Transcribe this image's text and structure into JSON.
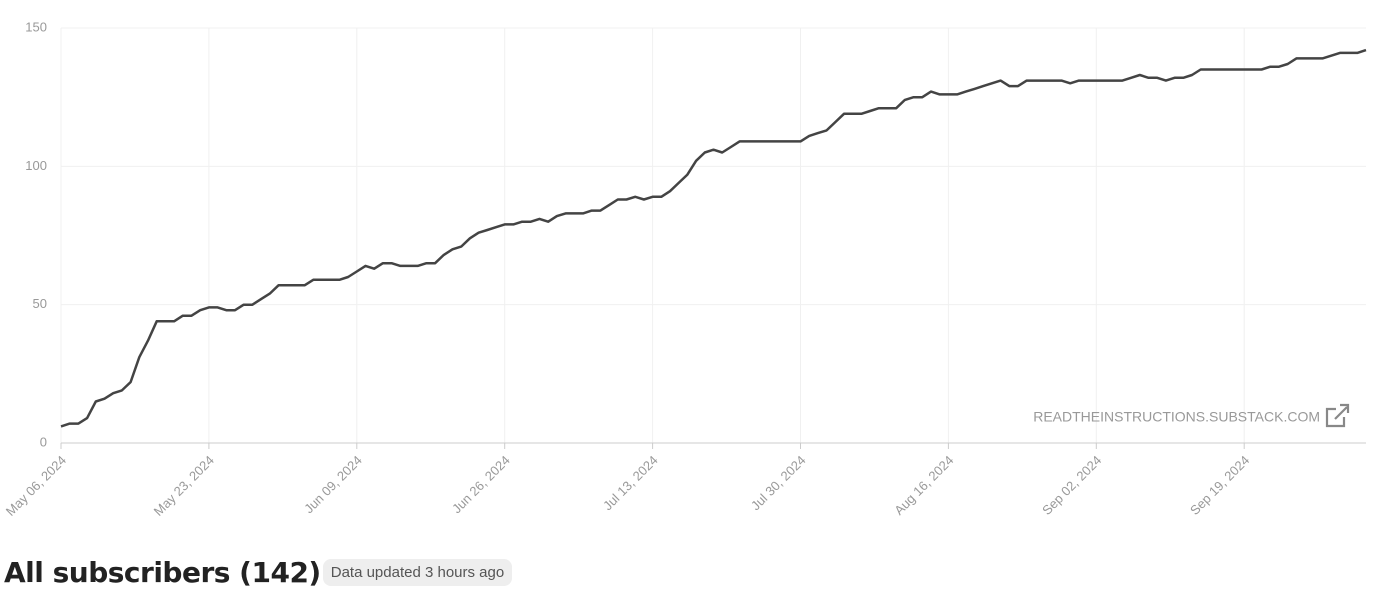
{
  "chart_data": {
    "type": "line",
    "color": "#444444",
    "grid": true,
    "x": [
      "2024-05-06",
      "2024-05-07",
      "2024-05-08",
      "2024-05-09",
      "2024-05-10",
      "2024-05-11",
      "2024-05-12",
      "2024-05-13",
      "2024-05-14",
      "2024-05-15",
      "2024-05-16",
      "2024-05-17",
      "2024-05-18",
      "2024-05-19",
      "2024-05-20",
      "2024-05-21",
      "2024-05-22",
      "2024-05-23",
      "2024-05-24",
      "2024-05-25",
      "2024-05-26",
      "2024-05-27",
      "2024-05-28",
      "2024-05-29",
      "2024-05-30",
      "2024-05-31",
      "2024-06-01",
      "2024-06-02",
      "2024-06-03",
      "2024-06-04",
      "2024-06-05",
      "2024-06-06",
      "2024-06-07",
      "2024-06-08",
      "2024-06-09",
      "2024-06-10",
      "2024-06-11",
      "2024-06-12",
      "2024-06-13",
      "2024-06-14",
      "2024-06-15",
      "2024-06-16",
      "2024-06-17",
      "2024-06-18",
      "2024-06-19",
      "2024-06-20",
      "2024-06-21",
      "2024-06-22",
      "2024-06-23",
      "2024-06-24",
      "2024-06-25",
      "2024-06-26",
      "2024-06-27",
      "2024-06-28",
      "2024-06-29",
      "2024-06-30",
      "2024-07-01",
      "2024-07-02",
      "2024-07-03",
      "2024-07-04",
      "2024-07-05",
      "2024-07-06",
      "2024-07-07",
      "2024-07-08",
      "2024-07-09",
      "2024-07-10",
      "2024-07-11",
      "2024-07-12",
      "2024-07-13",
      "2024-07-14",
      "2024-07-15",
      "2024-07-16",
      "2024-07-17",
      "2024-07-18",
      "2024-07-19",
      "2024-07-20",
      "2024-07-21",
      "2024-07-22",
      "2024-07-23",
      "2024-07-24",
      "2024-07-25",
      "2024-07-26",
      "2024-07-27",
      "2024-07-28",
      "2024-07-29",
      "2024-07-30",
      "2024-07-31",
      "2024-08-01",
      "2024-08-02",
      "2024-08-03",
      "2024-08-04",
      "2024-08-05",
      "2024-08-06",
      "2024-08-07",
      "2024-08-08",
      "2024-08-09",
      "2024-08-10",
      "2024-08-11",
      "2024-08-12",
      "2024-08-13",
      "2024-08-14",
      "2024-08-15",
      "2024-08-16",
      "2024-08-17",
      "2024-08-18",
      "2024-08-19",
      "2024-08-20",
      "2024-08-21",
      "2024-08-22",
      "2024-08-23",
      "2024-08-24",
      "2024-08-25",
      "2024-08-26",
      "2024-08-27",
      "2024-08-28",
      "2024-08-29",
      "2024-08-30",
      "2024-08-31",
      "2024-09-01",
      "2024-09-02",
      "2024-09-03",
      "2024-09-04",
      "2024-09-05",
      "2024-09-06",
      "2024-09-07",
      "2024-09-08",
      "2024-09-09",
      "2024-09-10",
      "2024-09-11",
      "2024-09-12",
      "2024-09-13",
      "2024-09-14",
      "2024-09-15",
      "2024-09-16",
      "2024-09-17",
      "2024-09-18",
      "2024-09-19",
      "2024-09-20",
      "2024-09-21",
      "2024-09-22",
      "2024-09-23",
      "2024-09-24",
      "2024-09-25",
      "2024-09-26",
      "2024-09-27",
      "2024-09-28",
      "2024-09-29",
      "2024-09-30",
      "2024-10-01",
      "2024-10-02",
      "2024-10-03"
    ],
    "values": [
      6,
      7,
      7,
      9,
      15,
      16,
      18,
      19,
      22,
      31,
      37,
      44,
      44,
      44,
      46,
      46,
      48,
      49,
      49,
      48,
      48,
      50,
      50,
      52,
      54,
      57,
      57,
      57,
      57,
      59,
      59,
      59,
      59,
      60,
      62,
      64,
      63,
      65,
      65,
      64,
      64,
      64,
      65,
      65,
      68,
      70,
      71,
      74,
      76,
      77,
      78,
      79,
      79,
      80,
      80,
      81,
      80,
      82,
      83,
      83,
      83,
      84,
      84,
      86,
      88,
      88,
      89,
      88,
      89,
      89,
      91,
      94,
      97,
      102,
      105,
      106,
      105,
      107,
      109,
      109,
      109,
      109,
      109,
      109,
      109,
      109,
      111,
      112,
      113,
      116,
      119,
      119,
      119,
      120,
      121,
      121,
      121,
      124,
      125,
      125,
      127,
      126,
      126,
      126,
      127,
      128,
      129,
      130,
      131,
      129,
      129,
      131,
      131,
      131,
      131,
      131,
      130,
      131,
      131,
      131,
      131,
      131,
      131,
      132,
      133,
      132,
      132,
      131,
      132,
      132,
      133,
      135,
      135,
      135,
      135,
      135,
      135,
      135,
      135,
      136,
      136,
      137,
      139,
      139,
      139,
      139,
      140,
      141,
      141,
      141,
      142
    ],
    "ylim": [
      0,
      150
    ],
    "yticks": [
      0,
      50,
      100,
      150
    ],
    "xticks": [
      {
        "value": "2024-05-06",
        "label": "May 06, 2024"
      },
      {
        "value": "2024-05-23",
        "label": "May 23, 2024"
      },
      {
        "value": "2024-06-09",
        "label": "Jun 09, 2024"
      },
      {
        "value": "2024-06-26",
        "label": "Jun 26, 2024"
      },
      {
        "value": "2024-07-13",
        "label": "Jul 13, 2024"
      },
      {
        "value": "2024-07-30",
        "label": "Jul 30, 2024"
      },
      {
        "value": "2024-08-16",
        "label": "Aug 16, 2024"
      },
      {
        "value": "2024-09-02",
        "label": "Sep 02, 2024"
      },
      {
        "value": "2024-09-19",
        "label": "Sep 19, 2024"
      }
    ],
    "watermark": "READTHEINSTRUCTIONS.SUBSTACK.COM",
    "title": "All subscribers (142)",
    "badge": "Data updated 3 hours ago"
  }
}
